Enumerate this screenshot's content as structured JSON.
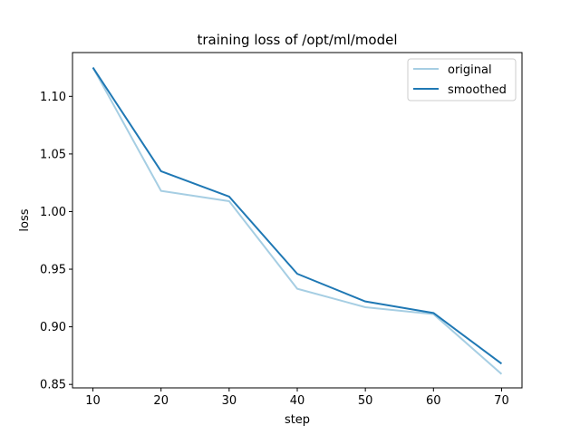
{
  "chart_data": {
    "type": "line",
    "title": "training loss of /opt/ml/model",
    "xlabel": "step",
    "ylabel": "loss",
    "x": [
      10,
      20,
      30,
      40,
      50,
      60,
      70
    ],
    "xticks": [
      "10",
      "20",
      "30",
      "40",
      "50",
      "60",
      "70"
    ],
    "yticks": [
      "0.85",
      "0.90",
      "0.95",
      "1.00",
      "1.05",
      "1.10"
    ],
    "ytick_values": [
      0.85,
      0.9,
      0.95,
      1.0,
      1.05,
      1.1
    ],
    "xlim": [
      7,
      73
    ],
    "ylim": [
      0.847,
      1.138
    ],
    "grid": false,
    "legend": "top-right",
    "series": [
      {
        "name": "original",
        "color": "#a6cee3",
        "values": [
          1.125,
          1.018,
          1.009,
          0.933,
          0.917,
          0.911,
          0.859
        ]
      },
      {
        "name": "smoothed",
        "color": "#1f78b4",
        "values": [
          1.125,
          1.035,
          1.013,
          0.946,
          0.922,
          0.912,
          0.868
        ]
      }
    ]
  }
}
